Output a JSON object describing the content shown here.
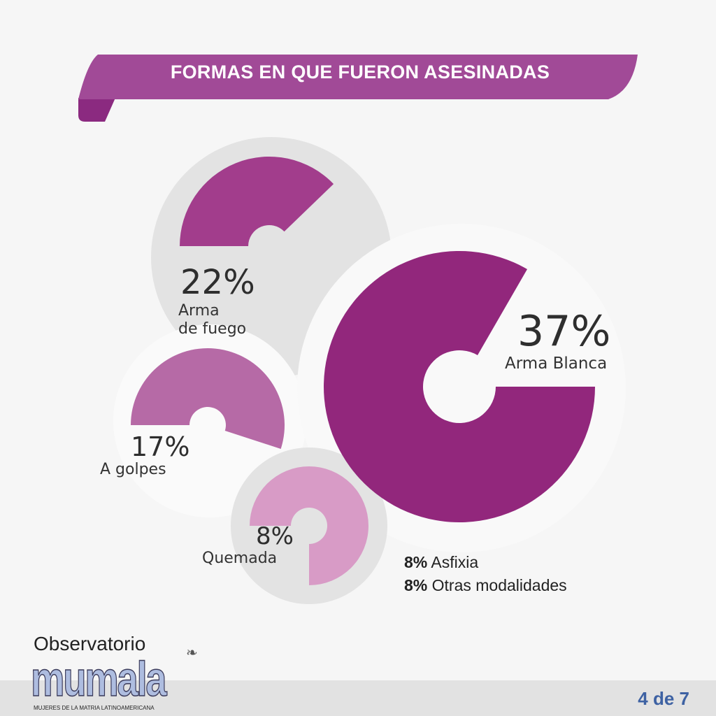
{
  "title": "FORMAS EN QUE FUERON ASESINADAS",
  "colors": {
    "banner": "#a14a97",
    "banner_fold": "#8b2a80",
    "arma_blanca": "#92277c",
    "arma_fuego": "#a23d8c",
    "golpes": "#b66aa6",
    "quemada": "#d89bc6",
    "page_number": "#3e62a3"
  },
  "chart_data": {
    "type": "pie",
    "series": [
      {
        "name": "Arma Blanca",
        "value": 37,
        "label": "37%"
      },
      {
        "name": "Arma de fuego",
        "value": 22,
        "label": "22%"
      },
      {
        "name": "A golpes",
        "value": 17,
        "label": "17%"
      },
      {
        "name": "Quemada",
        "value": 8,
        "label": "8%"
      },
      {
        "name": "Asfixia",
        "value": 8,
        "label": "8%"
      },
      {
        "name": "Otras modalidades",
        "value": 8,
        "label": "8%"
      }
    ]
  },
  "labels": {
    "arma_blanca": "Arma Blanca",
    "arma_fuego_1": "Arma",
    "arma_fuego_2": "de fuego",
    "golpes": "A golpes",
    "quemada": "Quemada",
    "asfixia": "Asfixia",
    "otras": "Otras modalidades"
  },
  "footer": {
    "logo_top": "Observatorio",
    "logo_main": "mumala",
    "logo_tagline": "MUJERES DE LA MATRIA LATINOAMERICANA",
    "page": "4 de 7"
  }
}
